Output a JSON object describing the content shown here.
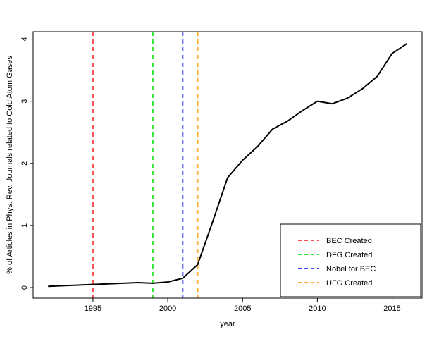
{
  "window": {
    "background": "#ffffff",
    "text_color": "#000000"
  },
  "chart_data": {
    "type": "line",
    "title": "",
    "xlabel": "year",
    "ylabel": "% of Articles in Phys. Rev. Journals related to Cold Atom Gases",
    "x": [
      1992,
      1993,
      1994,
      1995,
      1996,
      1997,
      1998,
      1999,
      2000,
      2001,
      2002,
      2003,
      2004,
      2005,
      2006,
      2007,
      2008,
      2009,
      2010,
      2011,
      2012,
      2013,
      2014,
      2015,
      2016
    ],
    "series": [
      {
        "color": "#000000",
        "line_width": 2,
        "values": [
          0.02,
          0.03,
          0.04,
          0.05,
          0.06,
          0.07,
          0.08,
          0.07,
          0.09,
          0.15,
          0.37,
          1.06,
          1.77,
          2.05,
          2.27,
          2.55,
          2.68,
          2.85,
          3.0,
          2.96,
          3.05,
          3.2,
          3.4,
          3.77,
          3.93
        ]
      }
    ],
    "xlim": [
      1991,
      2017
    ],
    "ylim": [
      -0.17,
      4.12
    ],
    "xticks": [
      1995,
      2000,
      2005,
      2010,
      2015
    ],
    "yticks": [
      0,
      1,
      2,
      3,
      4
    ],
    "grid": false,
    "legend_position": "bottomright",
    "vlines": [
      {
        "x": 1995,
        "color": "#ff4d4d",
        "style": "dashed",
        "label": "BEC Created"
      },
      {
        "x": 1999,
        "color": "#2ee62e",
        "style": "dashed",
        "label": "DFG Created"
      },
      {
        "x": 2001,
        "color": "#4040ff",
        "style": "dashed",
        "label": "Nobel for BEC"
      },
      {
        "x": 2002,
        "color": "#ffaa2e",
        "style": "dashed",
        "label": "UFG Created"
      }
    ]
  }
}
